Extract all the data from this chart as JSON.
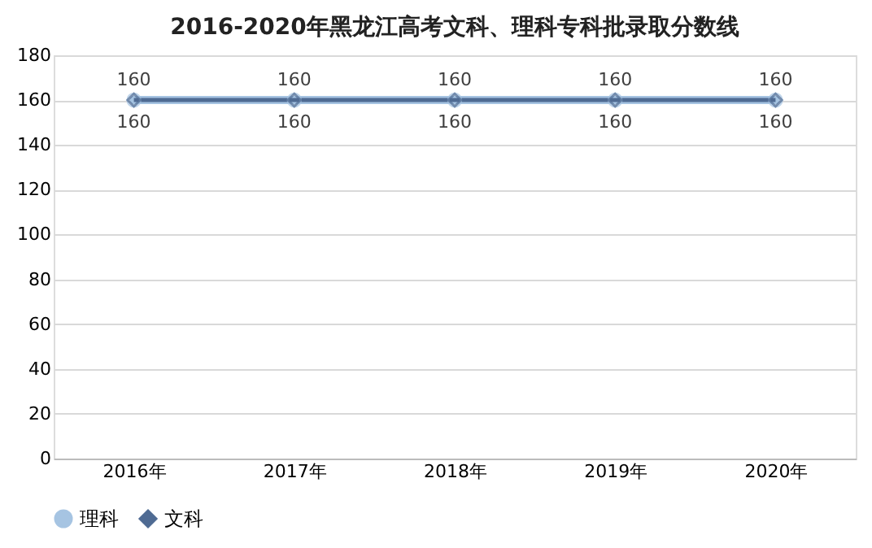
{
  "chart_data": {
    "type": "line",
    "title": "2016-2020年黑龙江高考文科、理科专科批录取分数线",
    "categories": [
      "2016年",
      "2017年",
      "2018年",
      "2019年",
      "2020年"
    ],
    "series": [
      {
        "name": "理科",
        "color": "#a6c4e2",
        "values": [
          160,
          160,
          160,
          160,
          160
        ],
        "marker": "circle"
      },
      {
        "name": "文科",
        "color": "#4f6b93",
        "values": [
          160,
          160,
          160,
          160,
          160
        ],
        "marker": "diamond"
      }
    ],
    "ylim": [
      0,
      180
    ],
    "yticks": [
      0,
      20,
      40,
      60,
      80,
      100,
      120,
      140,
      160,
      180
    ],
    "grid": "y",
    "legend": "bottom",
    "data_labels": true,
    "line_style": "solid"
  }
}
